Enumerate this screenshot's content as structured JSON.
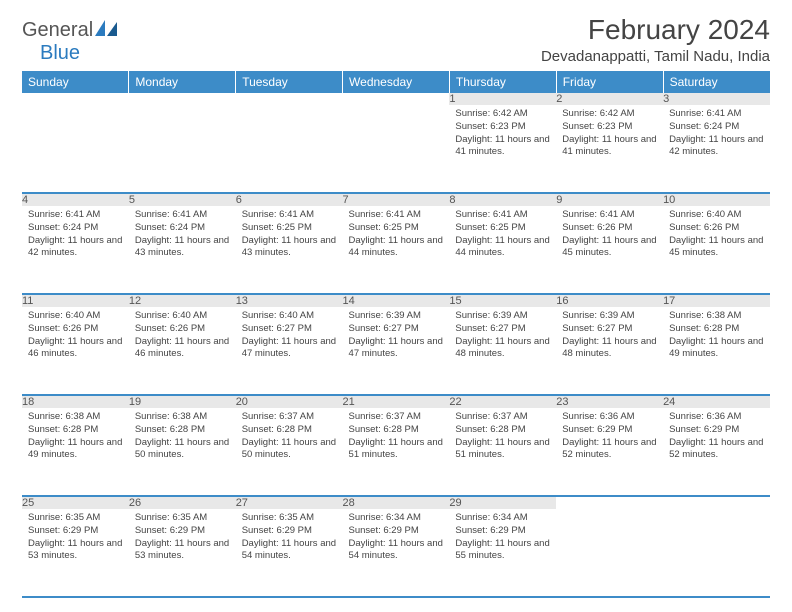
{
  "logo": {
    "text1": "General",
    "text2": "Blue"
  },
  "title": "February 2024",
  "location": "Devadanappatti, Tamil Nadu, India",
  "colors": {
    "header_bg": "#3d8cc8",
    "header_text": "#ffffff",
    "daynum_bg": "#e8e8e8",
    "row_divider": "#3d8cc8",
    "body_text": "#444444",
    "logo_gray": "#555555",
    "logo_blue": "#2b7bbf"
  },
  "weekdays": [
    "Sunday",
    "Monday",
    "Tuesday",
    "Wednesday",
    "Thursday",
    "Friday",
    "Saturday"
  ],
  "weeks": [
    [
      null,
      null,
      null,
      null,
      {
        "num": "1",
        "sunrise": "6:42 AM",
        "sunset": "6:23 PM",
        "daylight": "11 hours and 41 minutes."
      },
      {
        "num": "2",
        "sunrise": "6:42 AM",
        "sunset": "6:23 PM",
        "daylight": "11 hours and 41 minutes."
      },
      {
        "num": "3",
        "sunrise": "6:41 AM",
        "sunset": "6:24 PM",
        "daylight": "11 hours and 42 minutes."
      }
    ],
    [
      {
        "num": "4",
        "sunrise": "6:41 AM",
        "sunset": "6:24 PM",
        "daylight": "11 hours and 42 minutes."
      },
      {
        "num": "5",
        "sunrise": "6:41 AM",
        "sunset": "6:24 PM",
        "daylight": "11 hours and 43 minutes."
      },
      {
        "num": "6",
        "sunrise": "6:41 AM",
        "sunset": "6:25 PM",
        "daylight": "11 hours and 43 minutes."
      },
      {
        "num": "7",
        "sunrise": "6:41 AM",
        "sunset": "6:25 PM",
        "daylight": "11 hours and 44 minutes."
      },
      {
        "num": "8",
        "sunrise": "6:41 AM",
        "sunset": "6:25 PM",
        "daylight": "11 hours and 44 minutes."
      },
      {
        "num": "9",
        "sunrise": "6:41 AM",
        "sunset": "6:26 PM",
        "daylight": "11 hours and 45 minutes."
      },
      {
        "num": "10",
        "sunrise": "6:40 AM",
        "sunset": "6:26 PM",
        "daylight": "11 hours and 45 minutes."
      }
    ],
    [
      {
        "num": "11",
        "sunrise": "6:40 AM",
        "sunset": "6:26 PM",
        "daylight": "11 hours and 46 minutes."
      },
      {
        "num": "12",
        "sunrise": "6:40 AM",
        "sunset": "6:26 PM",
        "daylight": "11 hours and 46 minutes."
      },
      {
        "num": "13",
        "sunrise": "6:40 AM",
        "sunset": "6:27 PM",
        "daylight": "11 hours and 47 minutes."
      },
      {
        "num": "14",
        "sunrise": "6:39 AM",
        "sunset": "6:27 PM",
        "daylight": "11 hours and 47 minutes."
      },
      {
        "num": "15",
        "sunrise": "6:39 AM",
        "sunset": "6:27 PM",
        "daylight": "11 hours and 48 minutes."
      },
      {
        "num": "16",
        "sunrise": "6:39 AM",
        "sunset": "6:27 PM",
        "daylight": "11 hours and 48 minutes."
      },
      {
        "num": "17",
        "sunrise": "6:38 AM",
        "sunset": "6:28 PM",
        "daylight": "11 hours and 49 minutes."
      }
    ],
    [
      {
        "num": "18",
        "sunrise": "6:38 AM",
        "sunset": "6:28 PM",
        "daylight": "11 hours and 49 minutes."
      },
      {
        "num": "19",
        "sunrise": "6:38 AM",
        "sunset": "6:28 PM",
        "daylight": "11 hours and 50 minutes."
      },
      {
        "num": "20",
        "sunrise": "6:37 AM",
        "sunset": "6:28 PM",
        "daylight": "11 hours and 50 minutes."
      },
      {
        "num": "21",
        "sunrise": "6:37 AM",
        "sunset": "6:28 PM",
        "daylight": "11 hours and 51 minutes."
      },
      {
        "num": "22",
        "sunrise": "6:37 AM",
        "sunset": "6:28 PM",
        "daylight": "11 hours and 51 minutes."
      },
      {
        "num": "23",
        "sunrise": "6:36 AM",
        "sunset": "6:29 PM",
        "daylight": "11 hours and 52 minutes."
      },
      {
        "num": "24",
        "sunrise": "6:36 AM",
        "sunset": "6:29 PM",
        "daylight": "11 hours and 52 minutes."
      }
    ],
    [
      {
        "num": "25",
        "sunrise": "6:35 AM",
        "sunset": "6:29 PM",
        "daylight": "11 hours and 53 minutes."
      },
      {
        "num": "26",
        "sunrise": "6:35 AM",
        "sunset": "6:29 PM",
        "daylight": "11 hours and 53 minutes."
      },
      {
        "num": "27",
        "sunrise": "6:35 AM",
        "sunset": "6:29 PM",
        "daylight": "11 hours and 54 minutes."
      },
      {
        "num": "28",
        "sunrise": "6:34 AM",
        "sunset": "6:29 PM",
        "daylight": "11 hours and 54 minutes."
      },
      {
        "num": "29",
        "sunrise": "6:34 AM",
        "sunset": "6:29 PM",
        "daylight": "11 hours and 55 minutes."
      },
      null,
      null
    ]
  ],
  "labels": {
    "sunrise": "Sunrise:",
    "sunset": "Sunset:",
    "daylight": "Daylight:"
  }
}
